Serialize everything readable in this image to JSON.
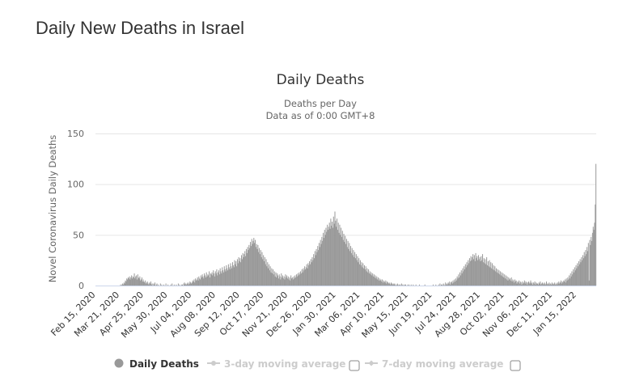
{
  "page": {
    "title": "Daily New Deaths in Israel"
  },
  "colors": {
    "bars": "#999999",
    "grid": "#e6e6e6",
    "axis": "#ccd6eb",
    "legend_inactive": "#cccccc"
  },
  "legend": {
    "items": [
      {
        "label": "Daily Deaths",
        "icon": "circle",
        "active": true
      },
      {
        "label": "3-day moving average",
        "icon": "line-marker",
        "active": false,
        "checkbox": false
      },
      {
        "label": "7-day moving average",
        "icon": "line-marker",
        "active": false,
        "checkbox": false
      }
    ]
  },
  "chart_data": {
    "type": "bar",
    "title": "Daily Deaths",
    "subtitle": [
      "Deaths per Day",
      "Data as of 0:00 GMT+8"
    ],
    "xlabel": "",
    "ylabel": "Novel Coronavirus Daily Deaths",
    "ylim": [
      0,
      150
    ],
    "yticks": [
      0,
      50,
      100,
      150
    ],
    "grid": true,
    "legend_position": "bottom",
    "x_start": "Feb 15, 2020",
    "x_step": "1 day",
    "xtick_labels": [
      "Feb 15, 2020",
      "Mar 21, 2020",
      "Apr 25, 2020",
      "May 30, 2020",
      "Jul 04, 2020",
      "Aug 08, 2020",
      "Sep 12, 2020",
      "Oct 17, 2020",
      "Nov 21, 2020",
      "Dec 26, 2020",
      "Jan 30, 2021",
      "Mar 06, 2021",
      "Apr 10, 2021",
      "May 15, 2021",
      "Jun 19, 2021",
      "Jul 24, 2021",
      "Aug 28, 2021",
      "Oct 02, 2021",
      "Nov 06, 2021",
      "Dec 11, 2021",
      "Jan 15, 2022"
    ],
    "xtick_interval_days": 35,
    "series": [
      {
        "name": "Daily Deaths",
        "values": [
          0,
          0,
          0,
          0,
          0,
          0,
          0,
          0,
          0,
          0,
          0,
          0,
          0,
          0,
          0,
          0,
          0,
          0,
          0,
          0,
          0,
          0,
          0,
          0,
          0,
          0,
          0,
          0,
          0,
          0,
          0,
          0,
          0,
          0,
          0,
          0,
          1,
          0,
          1,
          2,
          1,
          3,
          2,
          5,
          4,
          7,
          6,
          8,
          7,
          9,
          6,
          8,
          10,
          7,
          9,
          8,
          12,
          7,
          9,
          10,
          6,
          11,
          8,
          7,
          9,
          5,
          6,
          8,
          4,
          6,
          4,
          3,
          5,
          2,
          3,
          4,
          2,
          1,
          3,
          2,
          4,
          1,
          2,
          0,
          2,
          1,
          3,
          0,
          1,
          2,
          0,
          1,
          0,
          0,
          2,
          0,
          1,
          0,
          0,
          1,
          0,
          0,
          2,
          0,
          0,
          1,
          0,
          0,
          0,
          1,
          0,
          2,
          0,
          0,
          1,
          0,
          0,
          1,
          0,
          0,
          2,
          0,
          1,
          0,
          0,
          1,
          1,
          0,
          2,
          3,
          1,
          2,
          1,
          2,
          3,
          1,
          2,
          4,
          3,
          2,
          3,
          5,
          4,
          6,
          3,
          7,
          5,
          6,
          8,
          5,
          9,
          7,
          6,
          10,
          8,
          11,
          9,
          7,
          12,
          10,
          8,
          13,
          9,
          11,
          10,
          14,
          8,
          12,
          11,
          13,
          10,
          15,
          12,
          9,
          14,
          12,
          16,
          10,
          13,
          15,
          11,
          17,
          14,
          12,
          18,
          15,
          13,
          19,
          16,
          14,
          20,
          17,
          15,
          21,
          18,
          16,
          22,
          19,
          17,
          23,
          20,
          18,
          25,
          21,
          24,
          19,
          26,
          22,
          28,
          24,
          27,
          23,
          30,
          26,
          32,
          28,
          31,
          34,
          29,
          36,
          32,
          38,
          35,
          40,
          37,
          43,
          39,
          46,
          41,
          44,
          47,
          42,
          45,
          38,
          41,
          36,
          40,
          33,
          37,
          31,
          35,
          28,
          33,
          26,
          30,
          24,
          28,
          21,
          26,
          19,
          23,
          17,
          21,
          15,
          19,
          13,
          17,
          12,
          16,
          11,
          14,
          9,
          13,
          8,
          12,
          10,
          7,
          11,
          9,
          6,
          12,
          8,
          10,
          7,
          9,
          6,
          11,
          8,
          10,
          7,
          9,
          6,
          8,
          5,
          10,
          7,
          8,
          6,
          9,
          7,
          10,
          8,
          11,
          9,
          12,
          10,
          13,
          11,
          14,
          12,
          16,
          13,
          17,
          15,
          19,
          16,
          18,
          21,
          17,
          22,
          20,
          24,
          21,
          26,
          23,
          28,
          25,
          31,
          27,
          34,
          30,
          36,
          33,
          39,
          35,
          42,
          38,
          45,
          41,
          48,
          44,
          52,
          47,
          55,
          50,
          57,
          53,
          60,
          55,
          58,
          62,
          56,
          66,
          59,
          63,
          57,
          68,
          61,
          73,
          64,
          58,
          66,
          55,
          62,
          52,
          60,
          50,
          57,
          48,
          54,
          45,
          51,
          43,
          49,
          41,
          46,
          38,
          44,
          36,
          42,
          34,
          39,
          32,
          37,
          30,
          35,
          28,
          33,
          27,
          31,
          25,
          29,
          23,
          27,
          21,
          25,
          20,
          23,
          18,
          22,
          17,
          20,
          16,
          19,
          14,
          17,
          13,
          16,
          12,
          14,
          11,
          13,
          10,
          12,
          9,
          11,
          8,
          10,
          7,
          9,
          6,
          8,
          5,
          7,
          5,
          6,
          4,
          6,
          3,
          5,
          4,
          3,
          5,
          2,
          4,
          3,
          2,
          3,
          2,
          1,
          3,
          2,
          1,
          2,
          1,
          2,
          1,
          0,
          1,
          2,
          1,
          0,
          1,
          1,
          0,
          2,
          1,
          0,
          1,
          0,
          1,
          1,
          0,
          0,
          1,
          0,
          1,
          0,
          0,
          1,
          0,
          0,
          1,
          0,
          0,
          0,
          1,
          0,
          0,
          0,
          0,
          1,
          0,
          0,
          0,
          0,
          0,
          0,
          0,
          1,
          0,
          0,
          0,
          0,
          0,
          0,
          0,
          0,
          0,
          0,
          0,
          1,
          0,
          0,
          0,
          1,
          0,
          0,
          0,
          1,
          0,
          2,
          0,
          1,
          1,
          0,
          2,
          1,
          0,
          3,
          1,
          2,
          1,
          3,
          2,
          4,
          1,
          3,
          4,
          2,
          5,
          3,
          6,
          4,
          7,
          5,
          9,
          7,
          11,
          8,
          13,
          10,
          15,
          12,
          17,
          14,
          19,
          16,
          21,
          18,
          23,
          20,
          25,
          22,
          27,
          24,
          29,
          25,
          28,
          31,
          26,
          30,
          24,
          32,
          27,
          29,
          25,
          30,
          26,
          28,
          24,
          29,
          25,
          31,
          23,
          27,
          22,
          26,
          21,
          28,
          20,
          24,
          19,
          25,
          18,
          23,
          17,
          22,
          16,
          20,
          15,
          19,
          14,
          17,
          13,
          16,
          12,
          15,
          11,
          14,
          10,
          13,
          9,
          12,
          8,
          11,
          7,
          10,
          6,
          9,
          5,
          8,
          6,
          7,
          5,
          8,
          4,
          6,
          5,
          3,
          6,
          4,
          5,
          2,
          4,
          3,
          5,
          2,
          4,
          3,
          1,
          4,
          2,
          3,
          5,
          2,
          4,
          3,
          1,
          3,
          4,
          2,
          3,
          5,
          2,
          3,
          1,
          3,
          2,
          4,
          1,
          3,
          2,
          2,
          1,
          3,
          2,
          4,
          1,
          2,
          3,
          2,
          1,
          3,
          2,
          1,
          4,
          2,
          1,
          2,
          3,
          1,
          2,
          1,
          3,
          2,
          1,
          2,
          3,
          1,
          2,
          1,
          3,
          2,
          4,
          2,
          3,
          5,
          2,
          4,
          3,
          5,
          4,
          6,
          3,
          7,
          5,
          8,
          6,
          10,
          7,
          12,
          9,
          14,
          11,
          16,
          13,
          18,
          15,
          20,
          17,
          22,
          19,
          24,
          21,
          26,
          23,
          28,
          25,
          30,
          27,
          33,
          29,
          35,
          31,
          38,
          34,
          42,
          5,
          45,
          40,
          48,
          44,
          52,
          58,
          55,
          62,
          80,
          120
        ]
      }
    ]
  }
}
